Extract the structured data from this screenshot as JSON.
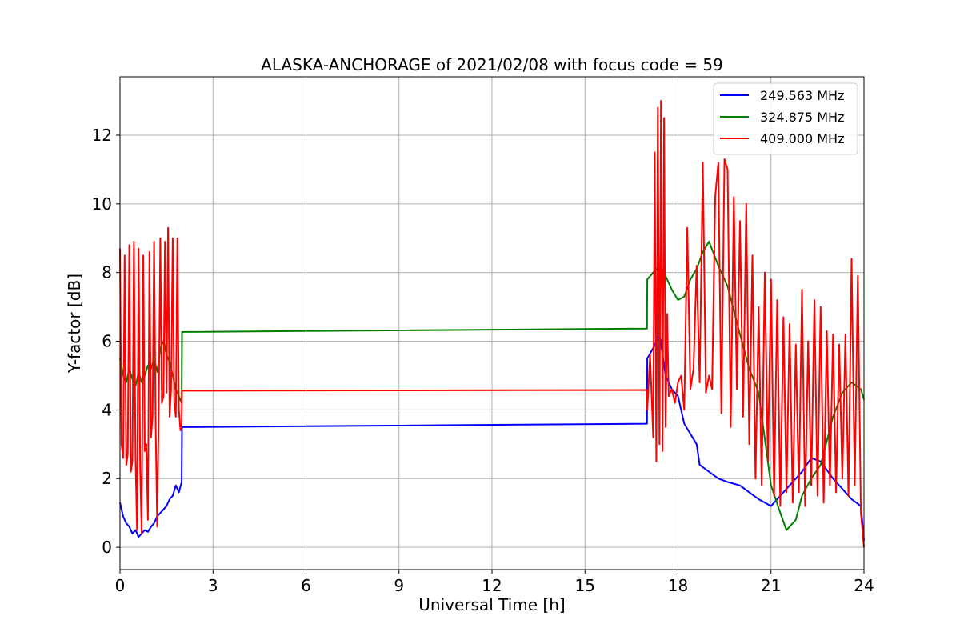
{
  "chart_data": {
    "type": "line",
    "title": "ALASKA-ANCHORAGE of 2021/02/08 with focus code = 59",
    "xlabel": "Universal Time [h]",
    "ylabel": "Y-factor [dB]",
    "xlim": [
      0,
      24
    ],
    "ylim": [
      -0.65,
      13.7
    ],
    "xticks": [
      0,
      3,
      6,
      9,
      12,
      15,
      18,
      21,
      24
    ],
    "yticks": [
      0,
      2,
      4,
      6,
      8,
      10,
      12
    ],
    "grid": true,
    "legend_position": "upper right",
    "series": [
      {
        "name": "249.563 MHz",
        "color": "#0000ff",
        "x": [
          0,
          0.1,
          0.2,
          0.3,
          0.4,
          0.5,
          0.6,
          0.7,
          0.8,
          0.9,
          1.0,
          1.1,
          1.2,
          1.3,
          1.4,
          1.5,
          1.6,
          1.7,
          1.8,
          1.9,
          1.99,
          2.0,
          17.0,
          17.01,
          17.2,
          17.4,
          17.6,
          17.8,
          18.0,
          18.2,
          18.4,
          18.6,
          18.7,
          19.0,
          19.3,
          19.6,
          20.0,
          20.3,
          20.6,
          21.0,
          21.3,
          21.6,
          22.0,
          22.3,
          22.6,
          23.0,
          23.3,
          23.6,
          23.9,
          24.0
        ],
        "y": [
          1.3,
          0.9,
          0.7,
          0.6,
          0.4,
          0.5,
          0.3,
          0.4,
          0.5,
          0.45,
          0.6,
          0.7,
          0.9,
          1.0,
          1.1,
          1.2,
          1.4,
          1.5,
          1.8,
          1.6,
          1.9,
          3.5,
          3.6,
          5.5,
          5.8,
          6.2,
          5.0,
          4.6,
          4.4,
          3.6,
          3.3,
          3.0,
          2.4,
          2.2,
          2.0,
          1.9,
          1.8,
          1.6,
          1.4,
          1.2,
          1.5,
          1.8,
          2.2,
          2.6,
          2.5,
          2.0,
          1.7,
          1.4,
          1.2,
          0.2
        ]
      },
      {
        "name": "324.875 MHz",
        "color": "#008000",
        "x": [
          0,
          0.1,
          0.2,
          0.3,
          0.4,
          0.5,
          0.6,
          0.7,
          0.8,
          0.9,
          1.0,
          1.1,
          1.2,
          1.3,
          1.4,
          1.5,
          1.6,
          1.7,
          1.8,
          1.9,
          1.99,
          2.0,
          17.0,
          17.01,
          17.2,
          17.4,
          17.6,
          17.8,
          18.0,
          18.2,
          18.4,
          18.6,
          18.8,
          19.0,
          19.3,
          19.6,
          20.0,
          20.3,
          20.6,
          21.0,
          21.3,
          21.5,
          21.8,
          22.0,
          22.3,
          22.6,
          23.0,
          23.3,
          23.6,
          23.9,
          24.0
        ],
        "y": [
          5.5,
          5.0,
          4.8,
          5.2,
          4.9,
          4.7,
          5.1,
          4.8,
          5.0,
          5.3,
          5.2,
          5.5,
          5.1,
          5.8,
          6.0,
          5.6,
          5.4,
          5.0,
          4.6,
          4.4,
          4.2,
          6.27,
          6.37,
          7.8,
          8.0,
          8.2,
          7.9,
          7.5,
          7.2,
          7.3,
          7.8,
          8.1,
          8.6,
          8.9,
          8.2,
          7.6,
          6.2,
          5.2,
          4.5,
          1.8,
          1.0,
          0.5,
          0.8,
          1.5,
          2.0,
          2.4,
          3.8,
          4.5,
          4.8,
          4.6,
          4.3
        ]
      },
      {
        "name": "409.000 MHz",
        "color": "#ff0000",
        "x": [
          0,
          0.05,
          0.1,
          0.15,
          0.2,
          0.25,
          0.3,
          0.35,
          0.4,
          0.45,
          0.5,
          0.55,
          0.6,
          0.65,
          0.7,
          0.75,
          0.8,
          0.85,
          0.9,
          0.95,
          1.0,
          1.05,
          1.1,
          1.15,
          1.2,
          1.25,
          1.3,
          1.35,
          1.4,
          1.45,
          1.5,
          1.55,
          1.6,
          1.65,
          1.7,
          1.75,
          1.8,
          1.85,
          1.9,
          1.95,
          1.99,
          2.0,
          17.0,
          17.01,
          17.1,
          17.2,
          17.25,
          17.3,
          17.35,
          17.4,
          17.45,
          17.5,
          17.55,
          17.6,
          17.65,
          17.7,
          17.8,
          17.9,
          18.0,
          18.1,
          18.2,
          18.3,
          18.4,
          18.5,
          18.6,
          18.7,
          18.8,
          18.9,
          19.0,
          19.1,
          19.2,
          19.3,
          19.4,
          19.5,
          19.6,
          19.7,
          19.8,
          19.9,
          20.0,
          20.1,
          20.2,
          20.3,
          20.4,
          20.5,
          20.6,
          20.7,
          20.8,
          20.9,
          21.0,
          21.1,
          21.2,
          21.3,
          21.4,
          21.5,
          21.6,
          21.7,
          21.8,
          21.9,
          22.0,
          22.1,
          22.2,
          22.3,
          22.4,
          22.5,
          22.6,
          22.7,
          22.8,
          22.9,
          23.0,
          23.1,
          23.2,
          23.3,
          23.4,
          23.5,
          23.6,
          23.7,
          23.8,
          23.9,
          24.0
        ],
        "y": [
          8.7,
          3.0,
          2.6,
          8.5,
          2.4,
          2.7,
          8.8,
          2.2,
          2.5,
          8.9,
          2.6,
          0.5,
          8.7,
          2.3,
          0.4,
          8.5,
          2.8,
          3.0,
          0.8,
          8.6,
          3.2,
          3.8,
          8.9,
          3.5,
          0.6,
          4.0,
          9.0,
          4.2,
          4.4,
          8.9,
          4.5,
          9.3,
          3.8,
          4.6,
          9.0,
          4.2,
          3.8,
          9.0,
          4.0,
          3.4,
          3.6,
          4.56,
          4.58,
          4.0,
          5.6,
          3.2,
          11.5,
          2.5,
          12.8,
          3.0,
          13.0,
          2.8,
          12.5,
          3.5,
          6.8,
          4.4,
          4.6,
          4.2,
          4.8,
          5.0,
          4.0,
          9.3,
          4.6,
          5.2,
          8.2,
          4.8,
          11.2,
          4.5,
          5.0,
          4.6,
          10.2,
          11.2,
          3.9,
          11.3,
          11.0,
          3.5,
          10.2,
          4.6,
          9.5,
          3.8,
          10.0,
          3.0,
          8.5,
          2.0,
          7.0,
          1.8,
          8.0,
          2.5,
          7.8,
          1.5,
          7.2,
          1.2,
          6.7,
          1.6,
          6.5,
          1.3,
          5.9,
          1.6,
          7.5,
          1.2,
          6.0,
          1.8,
          7.2,
          1.5,
          7.0,
          1.3,
          6.3,
          1.8,
          6.2,
          1.6,
          5.9,
          2.0,
          6.2,
          1.5,
          8.4,
          1.8,
          7.9,
          1.0,
          0.0
        ]
      }
    ]
  }
}
